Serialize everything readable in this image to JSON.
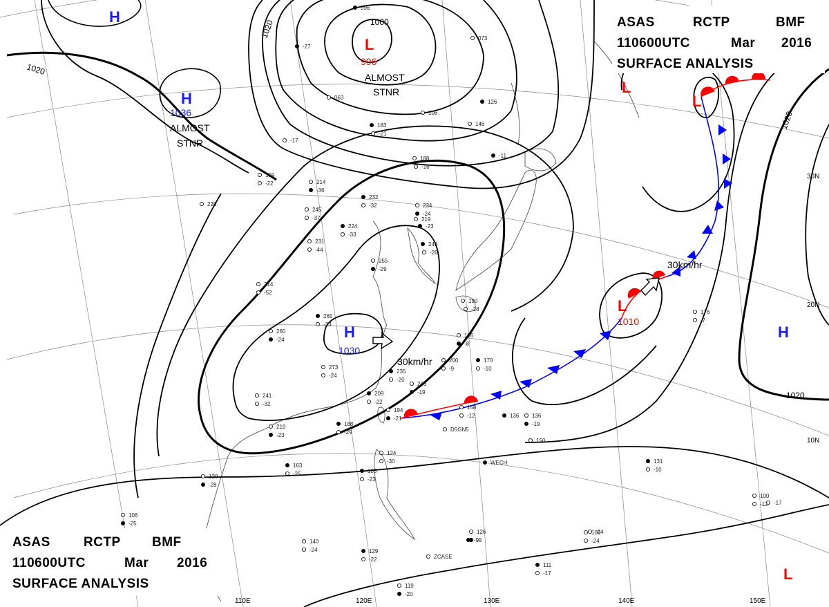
{
  "header_top": {
    "line1": [
      "ASAS",
      "RCTP",
      "BMF"
    ],
    "line2": [
      "110600UTC",
      "Mar",
      "2016"
    ],
    "line3": "SURFACE ANALYSIS"
  },
  "header_bottom": {
    "line1": [
      "ASAS",
      "RCTP",
      "BMF"
    ],
    "line2": [
      "110600UTC",
      "Mar",
      "2016"
    ],
    "line3": "SURFACE ANALYSIS"
  },
  "colors": {
    "high": "#1a1aff",
    "low": "#ff0000",
    "cold_front": "#0000ff",
    "warm_front": "#ff0000",
    "isobar": "#000000",
    "coast": "#555555",
    "grid": "#888888"
  },
  "pressure_centers": [
    {
      "type": "H",
      "symbol_name": "high-center-north",
      "value": ""
    },
    {
      "type": "H",
      "symbol_name": "high-center-mongolia",
      "value": "1036"
    },
    {
      "type": "H",
      "symbol_name": "high-center-china",
      "value": "1030"
    },
    {
      "type": "H",
      "symbol_name": "high-center-pacific",
      "value": ""
    },
    {
      "type": "L",
      "symbol_name": "low-center-north",
      "value": "996"
    },
    {
      "type": "L",
      "symbol_name": "low-center-kamchatka",
      "value": ""
    },
    {
      "type": "L",
      "symbol_name": "low-center-kuril",
      "value": ""
    },
    {
      "type": "L",
      "symbol_name": "low-center-frontal",
      "value": "1010"
    },
    {
      "type": "L",
      "symbol_name": "low-center-southeast",
      "value": ""
    }
  ],
  "notes": {
    "almost_stnr_1": [
      "ALMOST",
      "STNR"
    ],
    "almost_stnr_2": [
      "ALMOST",
      "STNR"
    ],
    "motion_1": "30km/hr",
    "motion_2": "30km/hr"
  },
  "isobar_labels": [
    "1020",
    "1000",
    "1020",
    "1020",
    "1020"
  ],
  "latitude_labels": [
    "30N",
    "20N",
    "10N"
  ],
  "longitude_labels": [
    "110E",
    "120E",
    "130E",
    "140E",
    "150E"
  ],
  "station_values": [
    "996",
    "073",
    "063",
    "-27",
    "-17",
    "106",
    "183",
    "-21",
    "146",
    "126",
    "188",
    "-16",
    "-11",
    "220",
    "214",
    "-36",
    "159",
    "-22",
    "232",
    "-32",
    "234",
    "-24",
    "245",
    "-37",
    "224",
    "-33",
    "219",
    "-23",
    "231",
    "-44",
    "248",
    "-26",
    "255",
    "-29",
    "214",
    "-52",
    "265",
    "-33",
    "260",
    "-24",
    "273",
    "-24",
    "235",
    "-20",
    "203",
    "-19",
    "200",
    "-9",
    "170",
    "-10",
    "195",
    "-8",
    "190",
    "-28",
    "209",
    "-22",
    "194",
    "-21",
    "158",
    "-12",
    "188",
    "-29",
    "219",
    "-23",
    "241",
    "-32",
    "163",
    "-25",
    "120",
    "-28",
    "124",
    "-30",
    "105",
    "-23",
    "136",
    "-19",
    "176",
    "-7",
    "131",
    "-10",
    "106",
    "-25",
    "140",
    "-24",
    "129",
    "-22",
    "126",
    "-9",
    "105",
    "-24",
    "111",
    "-17",
    "119",
    "-20",
    "100",
    "-12",
    "136",
    "150",
    "D5GN5",
    "WECH",
    "ZCASE",
    "-17",
    "-9",
    "-24"
  ]
}
